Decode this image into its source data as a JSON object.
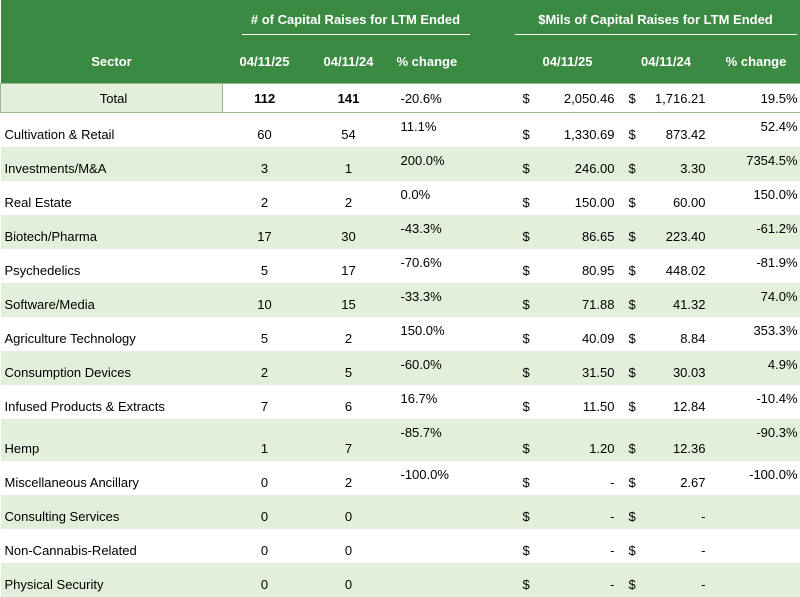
{
  "header": {
    "group1": "# of Capital Raises for LTM  Ended",
    "group2": "$Mils of Capital Raises for LTM Ended",
    "sector": "Sector",
    "date1": "04/11/25",
    "date2": "04/11/24",
    "pct_change": "% change",
    "date3": "04/11/25",
    "date4": "04/11/24",
    "pct_change2": "% change"
  },
  "total": {
    "label": "Total",
    "count_2025": "112",
    "count_2024": "141",
    "count_pct": "-20.6%",
    "dollar_sign": "$",
    "mils_2025": "2,050.46",
    "mils_2024": "1,716.21",
    "mils_pct": "19.5%"
  },
  "rows": [
    {
      "sector": "Cultivation & Retail",
      "c25": "60",
      "c24": "54",
      "cpct": "11.1%",
      "d1": "$",
      "m25": "1,330.69",
      "d2": "$",
      "m24": "873.42",
      "mpct": "52.4%"
    },
    {
      "sector": "Investments/M&A",
      "c25": "3",
      "c24": "1",
      "cpct": "200.0%",
      "d1": "$",
      "m25": "246.00",
      "d2": "$",
      "m24": "3.30",
      "mpct": "7354.5%"
    },
    {
      "sector": "Real Estate",
      "c25": "2",
      "c24": "2",
      "cpct": "0.0%",
      "d1": "$",
      "m25": "150.00",
      "d2": "$",
      "m24": "60.00",
      "mpct": "150.0%"
    },
    {
      "sector": "Biotech/Pharma",
      "c25": "17",
      "c24": "30",
      "cpct": "-43.3%",
      "d1": "$",
      "m25": "86.65",
      "d2": "$",
      "m24": "223.40",
      "mpct": "-61.2%"
    },
    {
      "sector": "Psychedelics",
      "c25": "5",
      "c24": "17",
      "cpct": "-70.6%",
      "d1": "$",
      "m25": "80.95",
      "d2": "$",
      "m24": "448.02",
      "mpct": "-81.9%"
    },
    {
      "sector": "Software/Media",
      "c25": "10",
      "c24": "15",
      "cpct": "-33.3%",
      "d1": "$",
      "m25": "71.88",
      "d2": "$",
      "m24": "41.32",
      "mpct": "74.0%"
    },
    {
      "sector": "Agriculture Technology",
      "c25": "5",
      "c24": "2",
      "cpct": "150.0%",
      "d1": "$",
      "m25": "40.09",
      "d2": "$",
      "m24": "8.84",
      "mpct": "353.3%"
    },
    {
      "sector": "Consumption Devices",
      "c25": "2",
      "c24": "5",
      "cpct": "-60.0%",
      "d1": "$",
      "m25": "31.50",
      "d2": "$",
      "m24": "30.03",
      "mpct": "4.9%"
    },
    {
      "sector": "Infused Products & Extracts",
      "c25": "7",
      "c24": "6",
      "cpct": "16.7%",
      "d1": "$",
      "m25": "11.50",
      "d2": "$",
      "m24": "12.84",
      "mpct": "-10.4%"
    },
    {
      "sector": "Hemp",
      "c25": "1",
      "c24": "7",
      "cpct": "-85.7%",
      "d1": "$",
      "m25": "1.20",
      "d2": "$",
      "m24": "12.36",
      "mpct": "-90.3%"
    },
    {
      "sector": "Miscellaneous Ancillary",
      "c25": "0",
      "c24": "2",
      "cpct": "-100.0%",
      "d1": "$",
      "m25": "-",
      "d2": "$",
      "m24": "2.67",
      "mpct": "-100.0%"
    },
    {
      "sector": "Consulting Services",
      "c25": "0",
      "c24": "0",
      "cpct": "",
      "d1": "$",
      "m25": "-",
      "d2": "$",
      "m24": "-",
      "mpct": ""
    },
    {
      "sector": "Non-Cannabis-Related",
      "c25": "0",
      "c24": "0",
      "cpct": "",
      "d1": "$",
      "m25": "-",
      "d2": "$",
      "m24": "-",
      "mpct": ""
    },
    {
      "sector": "Physical Security",
      "c25": "0",
      "c24": "0",
      "cpct": "",
      "d1": "$",
      "m25": "-",
      "d2": "$",
      "m24": "-",
      "mpct": ""
    }
  ]
}
